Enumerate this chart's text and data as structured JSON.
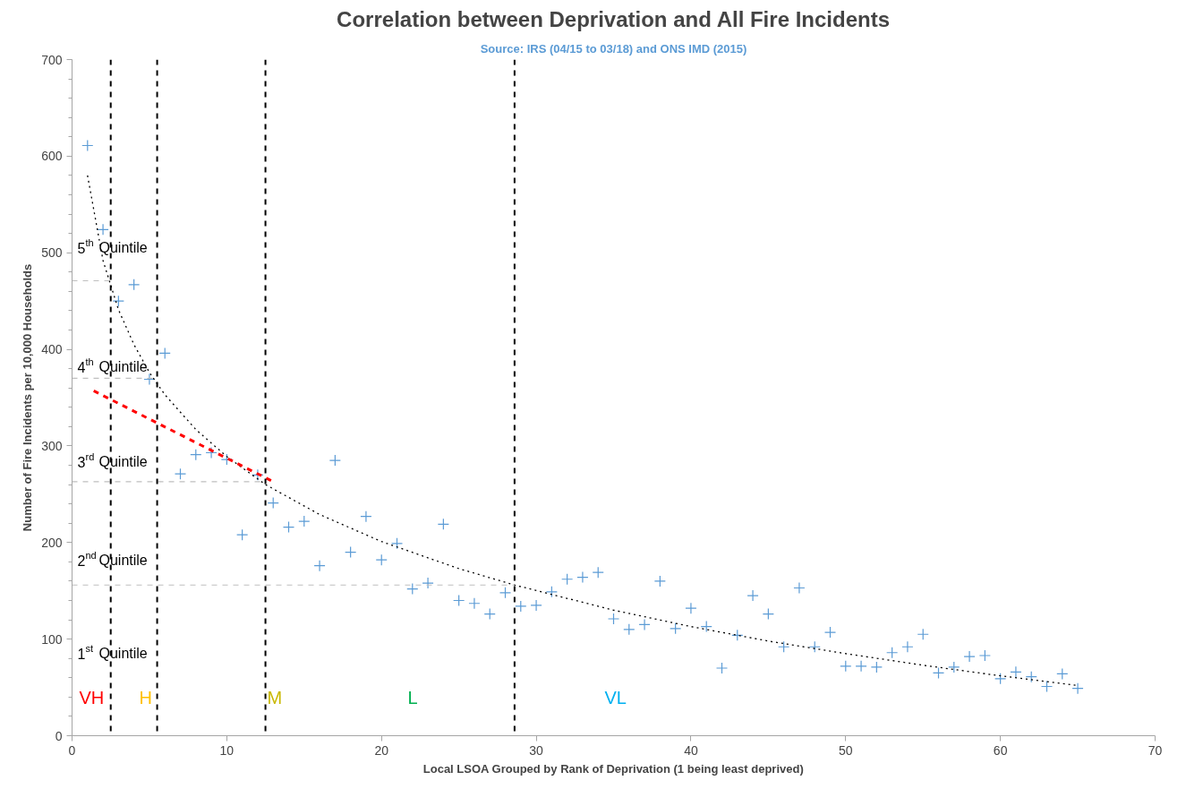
{
  "chart_data": {
    "type": "scatter",
    "title": "Correlation between Deprivation and All Fire Incidents",
    "subtitle": "Source: IRS (04/15 to 03/18) and ONS IMD (2015)",
    "xlabel": "Local LSOA Grouped by Rank of Deprivation (1 being least deprived)",
    "ylabel": "Number of Fire Incidents per 10,000 Households",
    "xlim": [
      0,
      70
    ],
    "ylim": [
      0,
      700
    ],
    "xticks": [
      0,
      10,
      20,
      30,
      40,
      50,
      60,
      70
    ],
    "yticks": [
      0,
      100,
      200,
      300,
      400,
      500,
      600,
      700
    ],
    "series": [
      {
        "marker": "cross",
        "color": "#5b9bd5",
        "x": [
          1,
          2,
          3,
          4,
          5,
          6,
          7,
          8,
          9,
          10,
          11,
          12,
          13,
          14,
          15,
          16,
          17,
          18,
          19,
          20,
          21,
          22,
          23,
          24,
          25,
          26,
          27,
          28,
          29,
          30,
          31,
          32,
          33,
          34,
          35,
          36,
          37,
          38,
          39,
          40,
          41,
          42,
          43,
          44,
          45,
          46,
          47,
          48,
          49,
          50,
          51,
          52,
          53,
          54,
          55,
          56,
          57,
          58,
          59,
          60,
          61,
          62,
          63,
          64,
          65
        ],
        "values": [
          611,
          524,
          450,
          467,
          369,
          396,
          271,
          291,
          293,
          286,
          208,
          270,
          241,
          216,
          222,
          176,
          285,
          190,
          227,
          182,
          199,
          152,
          158,
          219,
          140,
          137,
          126,
          148,
          134,
          135,
          149,
          162,
          164,
          169,
          121,
          110,
          115,
          160,
          111,
          132,
          113,
          70,
          104,
          145,
          126,
          92,
          153,
          92,
          107,
          72,
          72,
          71,
          86,
          92,
          105,
          65,
          71,
          82,
          83,
          59,
          66,
          61,
          51,
          64,
          49
        ]
      },
      {
        "type": "line",
        "marker": "none",
        "color": "#000000",
        "line_style": "dotted",
        "x": [
          1,
          2,
          3,
          4,
          5,
          6,
          8,
          10,
          12.5,
          16,
          20,
          25,
          28.6,
          35,
          40,
          45,
          50,
          55,
          60,
          65
        ],
        "values": [
          580,
          492,
          441,
          405,
          376,
          353,
          317,
          289,
          260,
          229,
          201,
          173,
          156,
          130,
          113,
          98,
          85,
          73,
          62,
          52
        ]
      },
      {
        "type": "line",
        "marker": "none",
        "color": "#ff0000",
        "line_style": "dashed",
        "x": [
          1.4,
          13
        ],
        "values": [
          357,
          263
        ]
      },
      {
        "type": "line",
        "marker": "none",
        "color": "#bfbfbf",
        "line_style": "dashed",
        "x": [
          0,
          2.5
        ],
        "values": [
          471,
          471
        ]
      },
      {
        "type": "line",
        "marker": "none",
        "color": "#bfbfbf",
        "line_style": "dashed",
        "x": [
          0,
          5.5
        ],
        "values": [
          370,
          370
        ]
      },
      {
        "type": "line",
        "marker": "none",
        "color": "#bfbfbf",
        "line_style": "dashed",
        "x": [
          0,
          12.5
        ],
        "values": [
          263,
          263
        ]
      },
      {
        "type": "line",
        "marker": "none",
        "color": "#bfbfbf",
        "line_style": "dashed",
        "x": [
          0,
          28.6
        ],
        "values": [
          156,
          156
        ]
      }
    ],
    "ref_lines": [
      {
        "axis": "x",
        "value": 2.5,
        "color": "#000000",
        "line_style": "dashed"
      },
      {
        "axis": "x",
        "value": 5.5,
        "color": "#000000",
        "line_style": "dashed"
      },
      {
        "axis": "x",
        "value": 12.5,
        "color": "#000000",
        "line_style": "dashed"
      },
      {
        "axis": "x",
        "value": 28.6,
        "color": "#000000",
        "line_style": "dashed"
      }
    ],
    "annotations": [
      "5$^{th}$ Quintile",
      "4$^{th}$ Quintile",
      "3$^{rd}$ Quintile",
      "2$^{nd}$ Quintile",
      "1$^{st}$ Quintile",
      "VH",
      "H",
      "M",
      "L",
      "VL"
    ]
  }
}
